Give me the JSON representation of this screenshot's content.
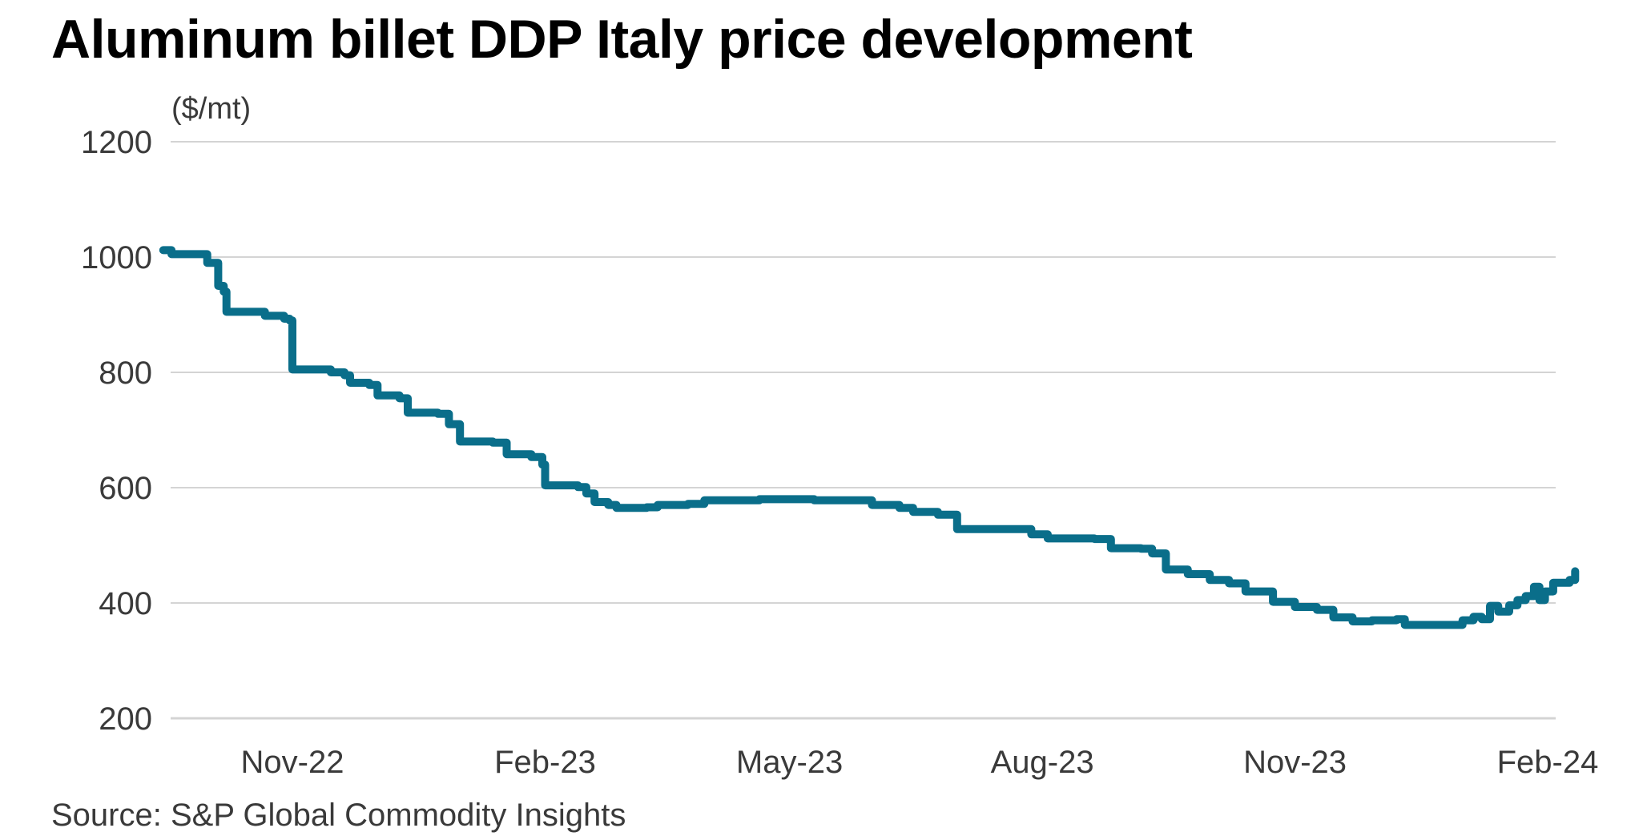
{
  "chart_data": {
    "type": "line",
    "title": "Aluminum billet DDP Italy price development",
    "unit_label": "($/mt)",
    "source": "Source: S&P Global Commodity Insights",
    "ylim": [
      200,
      1200
    ],
    "yticks": [
      200,
      400,
      600,
      800,
      1000,
      1200
    ],
    "xticks": [
      {
        "label": "Nov-22",
        "date": "2022-11-01"
      },
      {
        "label": "Feb-23",
        "date": "2023-02-01"
      },
      {
        "label": "May-23",
        "date": "2023-05-01"
      },
      {
        "label": "Aug-23",
        "date": "2023-08-01"
      },
      {
        "label": "Nov-23",
        "date": "2023-11-01"
      },
      {
        "label": "Feb-24",
        "date": "2024-02-01"
      }
    ],
    "grid": "horizontal",
    "line_color": "#0a6e8a",
    "grid_color": "#d4d4d4",
    "series": [
      {
        "step": true,
        "points": [
          [
            "2022-09-15",
            1012
          ],
          [
            "2022-09-18",
            1005
          ],
          [
            "2022-10-01",
            990
          ],
          [
            "2022-10-05",
            950
          ],
          [
            "2022-10-07",
            940
          ],
          [
            "2022-10-08",
            905
          ],
          [
            "2022-10-22",
            898
          ],
          [
            "2022-10-29",
            893
          ],
          [
            "2022-10-31",
            890
          ],
          [
            "2022-11-01",
            805
          ],
          [
            "2022-11-15",
            800
          ],
          [
            "2022-11-20",
            795
          ],
          [
            "2022-11-22",
            782
          ],
          [
            "2022-11-29",
            778
          ],
          [
            "2022-12-02",
            760
          ],
          [
            "2022-12-10",
            755
          ],
          [
            "2022-12-13",
            730
          ],
          [
            "2022-12-24",
            728
          ],
          [
            "2022-12-28",
            710
          ],
          [
            "2023-01-01",
            680
          ],
          [
            "2023-01-13",
            678
          ],
          [
            "2023-01-18",
            658
          ],
          [
            "2023-01-27",
            653
          ],
          [
            "2023-01-31",
            640
          ],
          [
            "2023-02-01",
            604
          ],
          [
            "2023-02-13",
            601
          ],
          [
            "2023-02-16",
            590
          ],
          [
            "2023-02-19",
            575
          ],
          [
            "2023-02-24",
            570
          ],
          [
            "2023-02-27",
            565
          ],
          [
            "2023-03-10",
            566
          ],
          [
            "2023-03-14",
            570
          ],
          [
            "2023-03-25",
            572
          ],
          [
            "2023-03-31",
            578
          ],
          [
            "2023-04-20",
            580
          ],
          [
            "2023-05-10",
            578
          ],
          [
            "2023-05-31",
            570
          ],
          [
            "2023-06-10",
            565
          ],
          [
            "2023-06-15",
            558
          ],
          [
            "2023-06-24",
            553
          ],
          [
            "2023-07-01",
            528
          ],
          [
            "2023-07-20",
            528
          ],
          [
            "2023-07-28",
            519
          ],
          [
            "2023-08-03",
            512
          ],
          [
            "2023-08-20",
            511
          ],
          [
            "2023-08-26",
            495
          ],
          [
            "2023-09-06",
            494
          ],
          [
            "2023-09-10",
            486
          ],
          [
            "2023-09-15",
            458
          ],
          [
            "2023-09-23",
            450
          ],
          [
            "2023-10-01",
            440
          ],
          [
            "2023-10-08",
            434
          ],
          [
            "2023-10-14",
            420
          ],
          [
            "2023-10-21",
            420
          ],
          [
            "2023-10-24",
            402
          ],
          [
            "2023-11-01",
            393
          ],
          [
            "2023-11-09",
            388
          ],
          [
            "2023-11-15",
            375
          ],
          [
            "2023-11-22",
            368
          ],
          [
            "2023-11-29",
            370
          ],
          [
            "2023-12-08",
            372
          ],
          [
            "2023-12-11",
            362
          ],
          [
            "2023-12-28",
            362
          ],
          [
            "2024-01-01",
            370
          ],
          [
            "2024-01-05",
            376
          ],
          [
            "2024-01-08",
            372
          ],
          [
            "2024-01-11",
            395
          ],
          [
            "2024-01-14",
            385
          ],
          [
            "2024-01-18",
            396
          ],
          [
            "2024-01-21",
            405
          ],
          [
            "2024-01-24",
            412
          ],
          [
            "2024-01-27",
            428
          ],
          [
            "2024-01-29",
            405
          ],
          [
            "2024-01-31",
            420
          ],
          [
            "2024-02-03",
            435
          ],
          [
            "2024-02-09",
            440
          ],
          [
            "2024-02-11",
            455
          ]
        ]
      }
    ]
  }
}
